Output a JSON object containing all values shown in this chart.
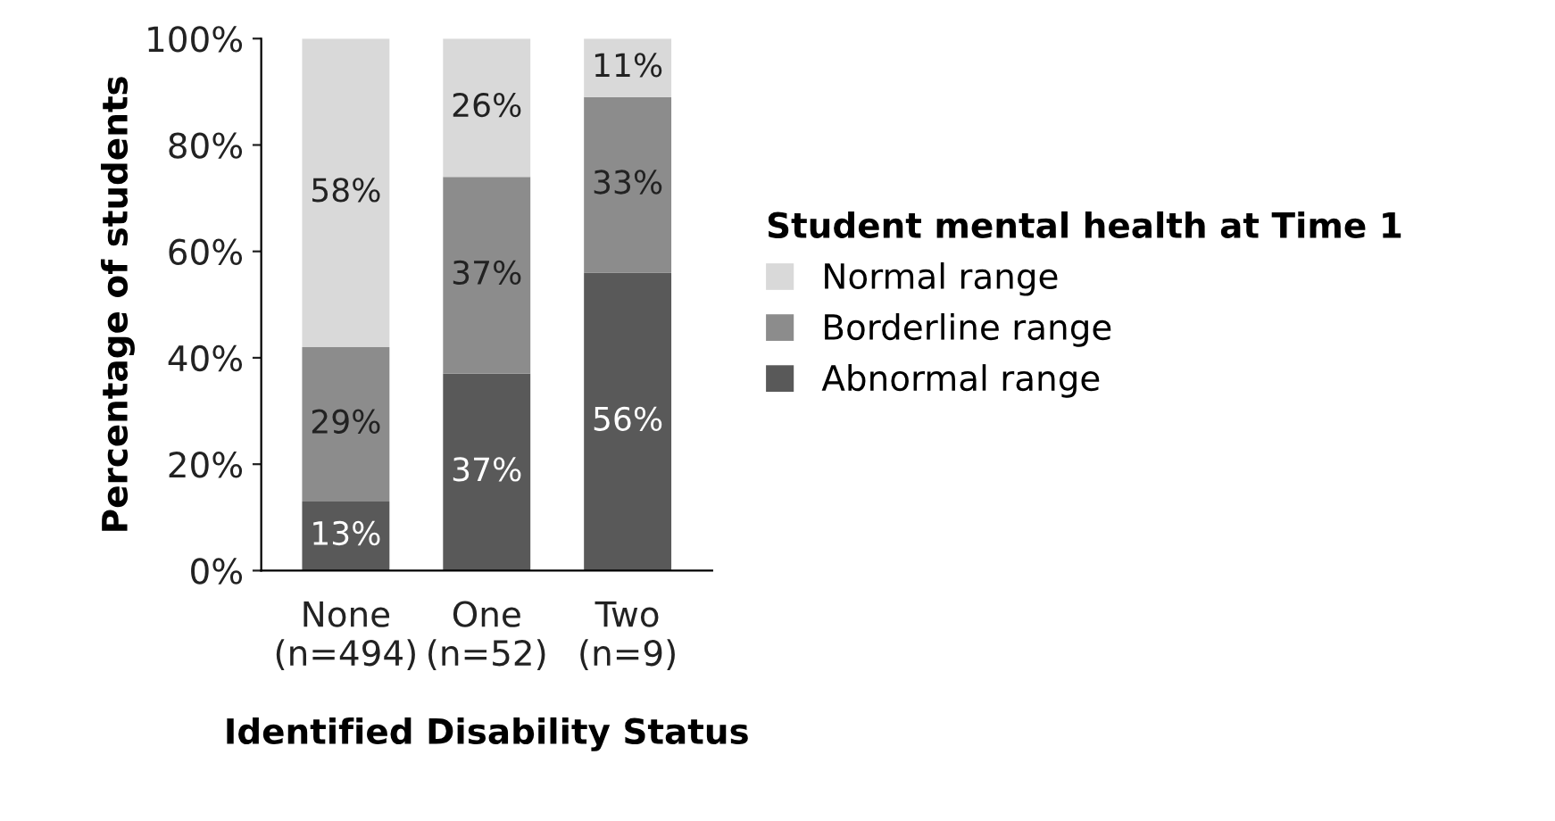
{
  "chart_data": {
    "type": "bar",
    "stacked": true,
    "xlabel": "Identified Disability Status",
    "ylabel": "Percentage of students",
    "legend_title": "Student mental health at Time 1",
    "legend": "right",
    "categories": [
      "None\n(n=494)",
      "One\n(n=52)",
      "Two\n(n=9)"
    ],
    "series": [
      {
        "name": "Abnormal range",
        "color": "#595959",
        "values": [
          13,
          37,
          56
        ],
        "value_labels": [
          "13%",
          "37%",
          "56%"
        ]
      },
      {
        "name": "Borderline range",
        "color": "#8c8c8c",
        "values": [
          29,
          37,
          33
        ],
        "value_labels": [
          "29%",
          "37%",
          "33%"
        ]
      },
      {
        "name": "Normal range",
        "color": "#d9d9d9",
        "values": [
          58,
          26,
          11
        ],
        "value_labels": [
          "58%",
          "26%",
          "11%"
        ]
      }
    ],
    "ylim": [
      0,
      100
    ],
    "yticks": [
      {
        "value": 0,
        "label": "0%"
      },
      {
        "value": 20,
        "label": "20%"
      },
      {
        "value": 40,
        "label": "40%"
      },
      {
        "value": 60,
        "label": "60%"
      },
      {
        "value": 80,
        "label": "80%"
      },
      {
        "value": 100,
        "label": "100%"
      }
    ],
    "grid": false
  }
}
